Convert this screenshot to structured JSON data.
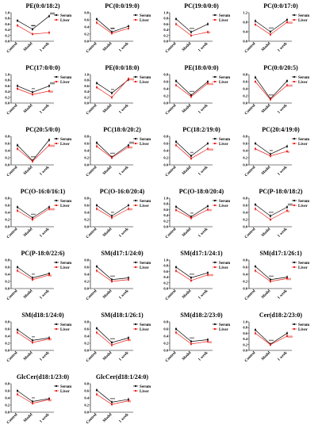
{
  "figure": {
    "categories": [
      "Control",
      "Model",
      "1 week"
    ],
    "legend": [
      "Serum",
      "Liver"
    ],
    "colors": {
      "serum": "#000000",
      "liver": "#e8211c"
    }
  },
  "chart_data": [
    {
      "type": "line",
      "title": "PE(0:0/18:2)",
      "categories": [
        "Control",
        "Model",
        "1 week"
      ],
      "ylim": [
        0,
        1.0
      ],
      "series": [
        {
          "name": "Serum",
          "values": [
            0.72,
            0.42,
            0.88
          ]
        },
        {
          "name": "Liver",
          "values": [
            0.55,
            0.25,
            0.3
          ]
        }
      ],
      "annotations": [
        "**",
        "***",
        "###"
      ]
    },
    {
      "type": "line",
      "title": "PC(0:0/19:0)",
      "categories": [
        "Control",
        "Model",
        "1 week"
      ],
      "ylim": [
        0,
        0.8
      ],
      "series": [
        {
          "name": "Serum",
          "values": [
            0.62,
            0.26,
            0.42
          ]
        },
        {
          "name": "Liver",
          "values": [
            0.52,
            0.22,
            0.36
          ]
        }
      ],
      "annotations": [
        "***",
        "**"
      ]
    },
    {
      "type": "line",
      "title": "PC(19:0/0:0)",
      "categories": [
        "Control",
        "Model",
        "1 week"
      ],
      "ylim": [
        0,
        1.0
      ],
      "series": [
        {
          "name": "Serum",
          "values": [
            0.78,
            0.32,
            0.6
          ]
        },
        {
          "name": "Liver",
          "values": [
            0.6,
            0.2,
            0.32
          ]
        }
      ],
      "annotations": [
        "***",
        "#"
      ]
    },
    {
      "type": "line",
      "title": "PC(0:0/17:0)",
      "categories": [
        "Control",
        "Model",
        "1 week"
      ],
      "ylim": [
        0,
        1.2
      ],
      "series": [
        {
          "name": "Serum",
          "values": [
            0.85,
            0.4,
            0.9
          ]
        },
        {
          "name": "Liver",
          "values": [
            0.7,
            0.28,
            0.8
          ]
        }
      ],
      "annotations": [
        "***",
        "###"
      ]
    },
    {
      "type": "line",
      "title": "PC(17:0/0:0)",
      "categories": [
        "Control",
        "Model",
        "1 week"
      ],
      "ylim": [
        0,
        1.0
      ],
      "series": [
        {
          "name": "Serum",
          "values": [
            0.6,
            0.38,
            0.6
          ]
        },
        {
          "name": "Liver",
          "values": [
            0.5,
            0.3,
            0.42
          ]
        }
      ],
      "annotations": [
        "**",
        "##",
        "###"
      ]
    },
    {
      "type": "line",
      "title": "PE(0:0/18:0)",
      "categories": [
        "Control",
        "Model",
        "1 week"
      ],
      "ylim": [
        0,
        1.0
      ],
      "series": [
        {
          "name": "Serum",
          "values": [
            0.7,
            0.35,
            0.82
          ]
        },
        {
          "name": "Liver",
          "values": [
            0.55,
            0.2,
            0.85
          ]
        }
      ],
      "annotations": [
        "**",
        "###"
      ]
    },
    {
      "type": "line",
      "title": "PE(18:0/0:0)",
      "categories": [
        "Control",
        "Model",
        "1 week"
      ],
      "ylim": [
        0,
        0.8
      ],
      "series": [
        {
          "name": "Serum",
          "values": [
            0.62,
            0.22,
            0.6
          ]
        },
        {
          "name": "Liver",
          "values": [
            0.5,
            0.18,
            0.55
          ]
        }
      ],
      "annotations": [
        "***",
        "###"
      ]
    },
    {
      "type": "line",
      "title": "PC(0:0/20:5)",
      "categories": [
        "Control",
        "Model",
        "1 week"
      ],
      "ylim": [
        0,
        0.8
      ],
      "series": [
        {
          "name": "Serum",
          "values": [
            0.72,
            0.12,
            0.62
          ]
        },
        {
          "name": "Liver",
          "values": [
            0.6,
            0.1,
            0.5
          ]
        }
      ],
      "annotations": [
        "***",
        "###"
      ]
    },
    {
      "type": "line",
      "title": "PC(20:5/0:0)",
      "categories": [
        "Control",
        "Model",
        "1 week"
      ],
      "ylim": [
        0,
        0.8
      ],
      "series": [
        {
          "name": "Serum",
          "values": [
            0.55,
            0.12,
            0.7
          ]
        },
        {
          "name": "Liver",
          "values": [
            0.45,
            0.1,
            0.55
          ]
        }
      ],
      "annotations": [
        "***",
        "###"
      ]
    },
    {
      "type": "line",
      "title": "PC(18:0/20:2)",
      "categories": [
        "Control",
        "Model",
        "1 week"
      ],
      "ylim": [
        0,
        0.8
      ],
      "series": [
        {
          "name": "Serum",
          "values": [
            0.62,
            0.22,
            0.55
          ]
        },
        {
          "name": "Liver",
          "values": [
            0.52,
            0.2,
            0.5
          ]
        }
      ],
      "annotations": [
        "***",
        "##",
        "###"
      ]
    },
    {
      "type": "line",
      "title": "PC(18:2/19:0)",
      "categories": [
        "Control",
        "Model",
        "1 week"
      ],
      "ylim": [
        0,
        0.8
      ],
      "series": [
        {
          "name": "Serum",
          "values": [
            0.65,
            0.25,
            0.6
          ]
        },
        {
          "name": "Liver",
          "values": [
            0.55,
            0.18,
            0.45
          ]
        }
      ],
      "annotations": [
        "**",
        "###"
      ]
    },
    {
      "type": "line",
      "title": "PC(20:4/19:0)",
      "categories": [
        "Control",
        "Model",
        "1 week"
      ],
      "ylim": [
        0,
        0.8
      ],
      "series": [
        {
          "name": "Serum",
          "values": [
            0.6,
            0.3,
            0.52
          ]
        },
        {
          "name": "Liver",
          "values": [
            0.45,
            0.25,
            0.38
          ]
        }
      ],
      "annotations": [
        "**",
        "#"
      ]
    },
    {
      "type": "line",
      "title": "PC(O-16:0/16:1)",
      "categories": [
        "Control",
        "Model",
        "1 week"
      ],
      "ylim": [
        0,
        0.8
      ],
      "series": [
        {
          "name": "Serum",
          "values": [
            0.55,
            0.25,
            0.55
          ]
        },
        {
          "name": "Liver",
          "values": [
            0.45,
            0.2,
            0.5
          ]
        }
      ],
      "annotations": [
        "***",
        "###"
      ]
    },
    {
      "type": "line",
      "title": "PC(O-16:0/20:4)",
      "categories": [
        "Control",
        "Model",
        "1 week"
      ],
      "ylim": [
        0,
        0.8
      ],
      "series": [
        {
          "name": "Serum",
          "values": [
            0.6,
            0.3,
            0.6
          ]
        },
        {
          "name": "Liver",
          "values": [
            0.5,
            0.25,
            0.5
          ]
        }
      ],
      "annotations": [
        "**",
        "##"
      ]
    },
    {
      "type": "line",
      "title": "PC(O-18:0/20:4)",
      "categories": [
        "Control",
        "Model",
        "1 week"
      ],
      "ylim": [
        0,
        1.0
      ],
      "series": [
        {
          "name": "Serum",
          "values": [
            0.7,
            0.35,
            0.72
          ]
        },
        {
          "name": "Liver",
          "values": [
            0.58,
            0.3,
            0.6
          ]
        }
      ],
      "annotations": [
        "**",
        "##"
      ]
    },
    {
      "type": "line",
      "title": "PC(P-18:0/18:2)",
      "categories": [
        "Control",
        "Model",
        "1 week"
      ],
      "ylim": [
        0,
        0.8
      ],
      "series": [
        {
          "name": "Serum",
          "values": [
            0.62,
            0.3,
            0.55
          ]
        },
        {
          "name": "Liver",
          "values": [
            0.5,
            0.2,
            0.45
          ]
        }
      ],
      "annotations": [
        "***",
        "#",
        "###"
      ]
    },
    {
      "type": "line",
      "title": "PC(P-18:0/22:6)",
      "categories": [
        "Control",
        "Model",
        "1 week"
      ],
      "ylim": [
        0,
        0.8
      ],
      "series": [
        {
          "name": "Serum",
          "values": [
            0.6,
            0.3,
            0.42
          ]
        },
        {
          "name": "Liver",
          "values": [
            0.5,
            0.25,
            0.38
          ]
        }
      ],
      "annotations": [
        "**",
        "#"
      ]
    },
    {
      "type": "line",
      "title": "SM(d17:1/24:0)",
      "categories": [
        "Control",
        "Model",
        "1 week"
      ],
      "ylim": [
        0,
        0.8
      ],
      "series": [
        {
          "name": "Serum",
          "values": [
            0.62,
            0.25,
            0.3
          ]
        },
        {
          "name": "Liver",
          "values": [
            0.5,
            0.2,
            0.25
          ]
        }
      ],
      "annotations": [
        "***"
      ]
    },
    {
      "type": "line",
      "title": "SM(d17:1/24:1)",
      "categories": [
        "Control",
        "Model",
        "1 week"
      ],
      "ylim": [
        0,
        1.0
      ],
      "series": [
        {
          "name": "Serum",
          "values": [
            0.75,
            0.38,
            0.55
          ]
        },
        {
          "name": "Liver",
          "values": [
            0.62,
            0.28,
            0.48
          ]
        }
      ],
      "annotations": [
        "***",
        "###"
      ]
    },
    {
      "type": "line",
      "title": "SM(d17:1/26:1)",
      "categories": [
        "Control",
        "Model",
        "1 week"
      ],
      "ylim": [
        0,
        0.8
      ],
      "series": [
        {
          "name": "Serum",
          "values": [
            0.62,
            0.25,
            0.32
          ]
        },
        {
          "name": "Liver",
          "values": [
            0.5,
            0.2,
            0.28
          ]
        }
      ],
      "annotations": [
        "***",
        "##"
      ]
    },
    {
      "type": "line",
      "title": "SM(d18:1/24:0)",
      "categories": [
        "Control",
        "Model",
        "1 week"
      ],
      "ylim": [
        0,
        0.8
      ],
      "series": [
        {
          "name": "Serum",
          "values": [
            0.58,
            0.28,
            0.35
          ]
        },
        {
          "name": "Liver",
          "values": [
            0.5,
            0.22,
            0.32
          ]
        }
      ],
      "annotations": [
        "**",
        "#"
      ]
    },
    {
      "type": "line",
      "title": "SM(d18:1/26:1)",
      "categories": [
        "Control",
        "Model",
        "1 week"
      ],
      "ylim": [
        0,
        0.8
      ],
      "series": [
        {
          "name": "Serum",
          "values": [
            0.62,
            0.22,
            0.35
          ]
        },
        {
          "name": "Liver",
          "values": [
            0.5,
            0.15,
            0.3
          ]
        }
      ],
      "annotations": [
        "***",
        "#"
      ]
    },
    {
      "type": "line",
      "title": "SM(d18:2/23:0)",
      "categories": [
        "Control",
        "Model",
        "1 week"
      ],
      "ylim": [
        0,
        0.8
      ],
      "series": [
        {
          "name": "Serum",
          "values": [
            0.6,
            0.25,
            0.3
          ]
        },
        {
          "name": "Liver",
          "values": [
            0.5,
            0.18,
            0.25
          ]
        }
      ],
      "annotations": [
        "***",
        "##"
      ]
    },
    {
      "type": "line",
      "title": "Cer(d18:2/23:0)",
      "categories": [
        "Control",
        "Model",
        "1 week"
      ],
      "ylim": [
        0,
        1.0
      ],
      "series": [
        {
          "name": "Serum",
          "values": [
            0.72,
            0.22,
            0.6
          ]
        },
        {
          "name": "Liver",
          "values": [
            0.6,
            0.2,
            0.5
          ]
        }
      ],
      "annotations": [
        "***",
        "###"
      ]
    },
    {
      "type": "line",
      "title": "GlcCer(d18:1/23:0)",
      "categories": [
        "Control",
        "Model",
        "1 week"
      ],
      "ylim": [
        0,
        0.8
      ],
      "series": [
        {
          "name": "Serum",
          "values": [
            0.6,
            0.3,
            0.38
          ]
        },
        {
          "name": "Liver",
          "values": [
            0.5,
            0.25,
            0.35
          ]
        }
      ],
      "annotations": [
        "**",
        "#"
      ]
    },
    {
      "type": "line",
      "title": "GlcCer(d18:1/24:0)",
      "categories": [
        "Control",
        "Model",
        "1 week"
      ],
      "ylim": [
        0,
        0.8
      ],
      "series": [
        {
          "name": "Serum",
          "values": [
            0.62,
            0.28,
            0.36
          ]
        },
        {
          "name": "Liver",
          "values": [
            0.5,
            0.22,
            0.32
          ]
        }
      ],
      "annotations": [
        "***",
        "#"
      ]
    }
  ]
}
